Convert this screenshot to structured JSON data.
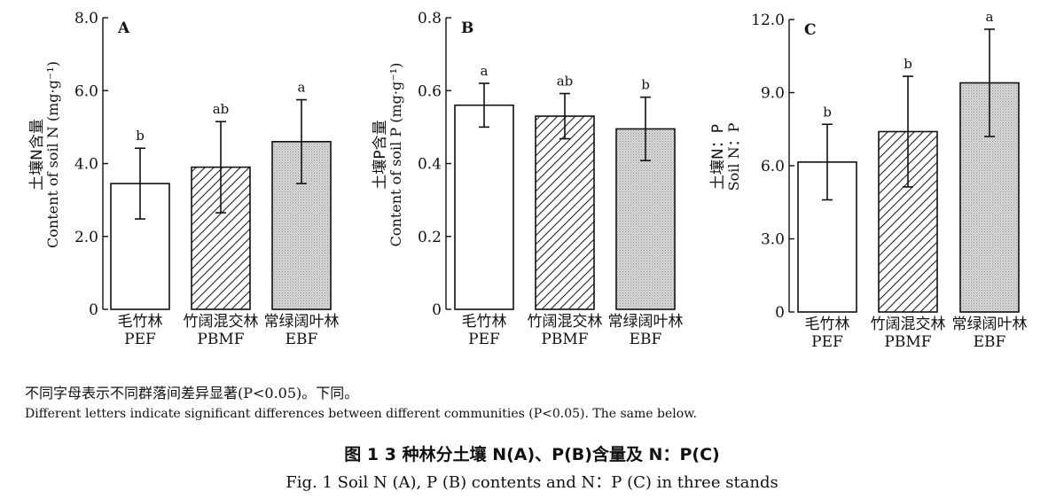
{
  "chart_data": [
    {
      "type": "bar",
      "panel_label": "A",
      "ylabel_cn": "土壤N含量",
      "ylabel_en": "Content of soil N (mg·g⁻¹)",
      "ylim": [
        0,
        8.0
      ],
      "yticks": [
        "0",
        "2.0",
        "4.0",
        "6.0",
        "8.0"
      ],
      "categories": [
        {
          "cn": "毛竹林",
          "en": "PEF",
          "fill": "white"
        },
        {
          "cn": "竹阔混交林",
          "en": "PBMF",
          "fill": "hatch"
        },
        {
          "cn": "常绿阔叶林",
          "en": "EBF",
          "fill": "dots"
        }
      ],
      "values": [
        3.45,
        3.9,
        4.6
      ],
      "errors": [
        0.97,
        1.25,
        1.15
      ],
      "letters": [
        "b",
        "ab",
        "a"
      ]
    },
    {
      "type": "bar",
      "panel_label": "B",
      "ylabel_cn": "土壤P含量",
      "ylabel_en": "Content of soil P (mg·g⁻¹)",
      "ylim": [
        0,
        0.8
      ],
      "yticks": [
        "0",
        "0.2",
        "0.4",
        "0.6",
        "0.8"
      ],
      "categories": [
        {
          "cn": "毛竹林",
          "en": "PEF",
          "fill": "white"
        },
        {
          "cn": "竹阔混交林",
          "en": "PBMF",
          "fill": "hatch"
        },
        {
          "cn": "常绿阔叶林",
          "en": "EBF",
          "fill": "dots"
        }
      ],
      "values": [
        0.56,
        0.53,
        0.495
      ],
      "errors": [
        0.06,
        0.062,
        0.087
      ],
      "letters": [
        "a",
        "ab",
        "b"
      ]
    },
    {
      "type": "bar",
      "panel_label": "C",
      "ylabel_cn": "土壤N：P",
      "ylabel_en": "Soil N：P",
      "ylim": [
        0,
        12.0
      ],
      "yticks": [
        "0",
        "3.0",
        "6.0",
        "9.0",
        "12.0"
      ],
      "categories": [
        {
          "cn": "毛竹林",
          "en": "PEF",
          "fill": "white"
        },
        {
          "cn": "竹阔混交林",
          "en": "PBMF",
          "fill": "hatch"
        },
        {
          "cn": "常绿阔叶林",
          "en": "EBF",
          "fill": "dots"
        }
      ],
      "values": [
        6.15,
        7.4,
        9.4
      ],
      "errors": [
        1.55,
        2.27,
        2.2
      ],
      "letters": [
        "b",
        "b",
        "a"
      ]
    }
  ],
  "notes": {
    "cn": "不同字母表示不同群落间差异显著(P<0.05)。下同。",
    "en": "Different letters indicate significant differences between different communities (P<0.05). The same below."
  },
  "caption": {
    "cn": "图 1   3 种林分土壤 N(A)、P(B)含量及 N：P(C)",
    "en": "Fig. 1   Soil N (A), P (B) contents and N：P (C) in three stands"
  }
}
